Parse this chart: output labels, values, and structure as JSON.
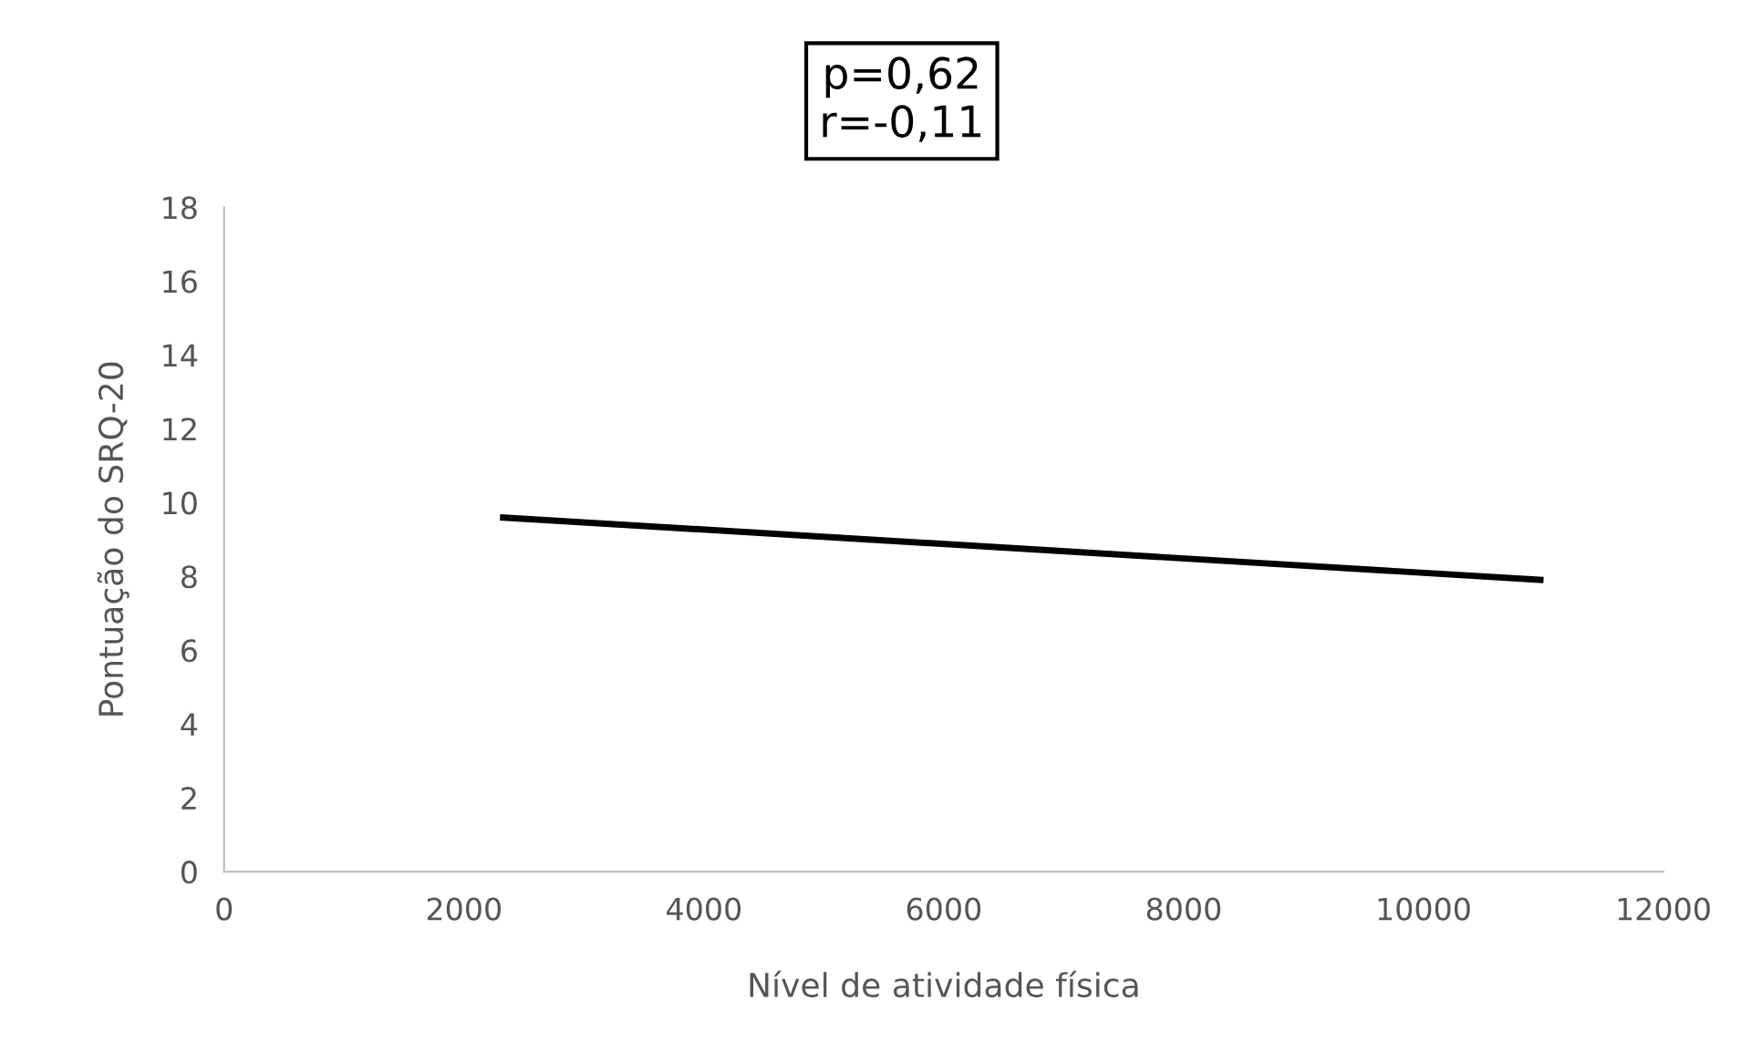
{
  "chart_data": {
    "type": "line",
    "xlabel": "Nível de atividade física",
    "ylabel": "Pontuação do SRQ-20",
    "annotations": [
      "p=0,62\nr=-0,11"
    ],
    "series": [
      {
        "color": "#000000",
        "x": [
          2300,
          11000
        ],
        "values": [
          9.6,
          7.9
        ]
      }
    ],
    "xlim": [
      0,
      12000
    ],
    "xticks": [
      0,
      2000,
      4000,
      6000,
      8000,
      10000,
      12000
    ],
    "ylim": [
      0,
      18
    ],
    "yticks": [
      0,
      2,
      4,
      6,
      8,
      10,
      12,
      14,
      16,
      18
    ],
    "grid": false,
    "marker": "none",
    "line_style": "solid"
  }
}
